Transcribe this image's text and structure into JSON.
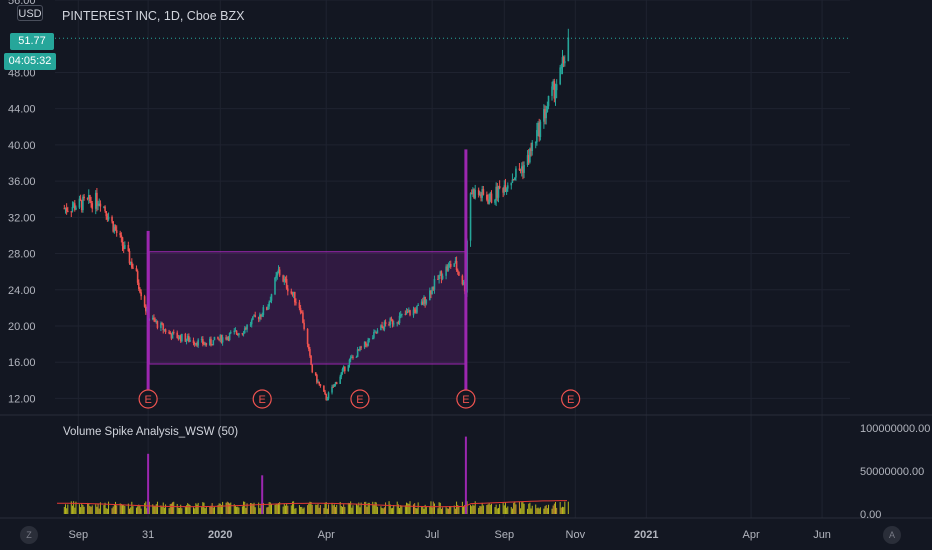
{
  "header": {
    "title": "PINTEREST INC, 1D, Cboe BZX",
    "currency": "USD"
  },
  "price_tag": {
    "value": "51.77",
    "timer": "04:05:32"
  },
  "indicator": {
    "label": "Volume Spike Analysis_WSW (50)"
  },
  "buttons": {
    "scale_left": "Z",
    "scale_right": "A"
  },
  "colors": {
    "background": "#131722",
    "up": "#26a69a",
    "down": "#ef5350",
    "box_fill": "#9c27b0",
    "marker": "#ef5350",
    "volume": "#c8c81e"
  },
  "chart_data": [
    {
      "type": "candlestick",
      "title": "PINTEREST INC, 1D, Cboe BZX",
      "y_ticks": [
        "12.00",
        "16.00",
        "20.00",
        "24.00",
        "28.00",
        "32.00",
        "36.00",
        "40.00",
        "44.00",
        "48.00",
        "56.00"
      ],
      "ylim": [
        10.5,
        56
      ],
      "x_ticks": [
        "Sep",
        "31",
        "2020",
        "Apr",
        "Jul",
        "Sep",
        "Nov",
        "2021",
        "Apr",
        "Jun"
      ],
      "current_price": 51.77,
      "x": [
        "2019-08-20",
        "2019-09-20",
        "2019-10-20",
        "2019-10-31",
        "2019-11-20",
        "2019-12-20",
        "2020-01-20",
        "2020-02-10",
        "2020-02-20",
        "2020-03-10",
        "2020-03-20",
        "2020-04-01",
        "2020-04-20",
        "2020-05-20",
        "2020-06-20",
        "2020-07-10",
        "2020-07-20",
        "2020-07-30",
        "2020-08-01",
        "2020-08-20",
        "2020-09-20",
        "2020-10-10",
        "2020-10-20",
        "2020-10-26"
      ],
      "close": [
        33,
        34,
        26,
        21,
        19,
        18,
        19.5,
        22,
        26,
        22,
        15,
        12,
        16,
        20,
        22,
        26,
        27,
        24,
        35,
        34,
        38,
        45,
        48,
        51.77
      ],
      "consolidation_box": {
        "x_start": "2019-11-01",
        "x_end": "2020-07-30",
        "y_low": 15.8,
        "y_high": 28.2
      },
      "events": [
        {
          "x": "2019-10-31",
          "label": "E"
        },
        {
          "x": "2020-02-06",
          "label": "E"
        },
        {
          "x": "2020-04-30",
          "label": "E"
        },
        {
          "x": "2020-07-30",
          "label": "E"
        },
        {
          "x": "2020-10-28",
          "label": "E"
        }
      ]
    },
    {
      "type": "bar",
      "title": "Volume Spike Analysis_WSW (50)",
      "y_ticks": [
        "0.00",
        "50000000.00",
        "100000000.00"
      ],
      "ylim": [
        0,
        100000000
      ],
      "spikes": [
        {
          "x": "2019-10-31",
          "value": 70000000
        },
        {
          "x": "2020-02-06",
          "value": 45000000
        },
        {
          "x": "2020-07-30",
          "value": 90000000
        }
      ]
    }
  ]
}
